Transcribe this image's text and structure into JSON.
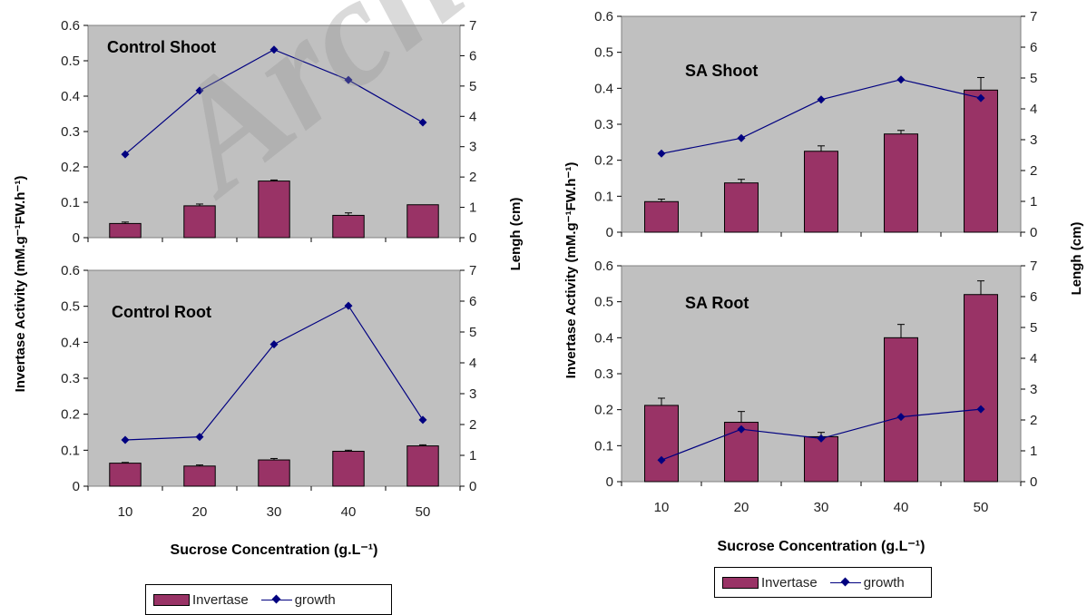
{
  "colors": {
    "invertase": "#993366",
    "growth": "#000080",
    "plot_bg": "#C0C0C0"
  },
  "watermark": "Archive",
  "left_figure": {
    "y_left_label": "Invertase Activity (mM.g⁻¹FW.h⁻¹)",
    "y_right_label": "Lengh (cm)",
    "x_label": "Sucrose Concentration (g.L⁻¹)",
    "legend": {
      "invertase": "Invertase",
      "growth": "growth"
    }
  },
  "right_figure": {
    "y_left_label": "Invertase Activity (mM.g⁻¹FW.h⁻¹)",
    "y_right_label": "Lengh (cm)",
    "x_label": "Sucrose Concentration (g.L⁻¹)",
    "legend": {
      "invertase": "Invertase",
      "growth": "growth"
    }
  },
  "chart_data": [
    {
      "type": "bar",
      "title": "Control Shoot",
      "categories": [
        "10",
        "20",
        "30",
        "40",
        "50"
      ],
      "series": [
        {
          "name": "Invertase",
          "axis": "left",
          "type": "bar",
          "values": [
            0.04,
            0.09,
            0.16,
            0.063,
            0.093
          ],
          "errors": [
            0.004,
            0.005,
            0.003,
            0.007,
            0.0
          ]
        },
        {
          "name": "growth",
          "axis": "right",
          "type": "line",
          "values": [
            2.75,
            4.85,
            6.2,
            5.2,
            3.8
          ]
        }
      ],
      "ylim": [
        0,
        0.6
      ],
      "yticks": [
        "0",
        "0.1",
        "0.2",
        "0.3",
        "0.4",
        "0.5",
        "0.6"
      ],
      "y2lim": [
        0,
        7
      ],
      "y2ticks": [
        "0",
        "1",
        "2",
        "3",
        "4",
        "5",
        "6",
        "7"
      ],
      "grid": false
    },
    {
      "type": "bar",
      "title": "Control Root",
      "categories": [
        "10",
        "20",
        "30",
        "40",
        "50"
      ],
      "series": [
        {
          "name": "Invertase",
          "axis": "left",
          "type": "bar",
          "values": [
            0.064,
            0.056,
            0.073,
            0.097,
            0.112
          ],
          "errors": [
            0.002,
            0.003,
            0.004,
            0.003,
            0.003
          ]
        },
        {
          "name": "growth",
          "axis": "right",
          "type": "line",
          "values": [
            1.5,
            1.6,
            4.6,
            5.85,
            2.15
          ]
        }
      ],
      "ylim": [
        0,
        0.6
      ],
      "yticks": [
        "0",
        "0.1",
        "0.2",
        "0.3",
        "0.4",
        "0.5",
        "0.6"
      ],
      "y2lim": [
        0,
        7
      ],
      "y2ticks": [
        "0",
        "1",
        "2",
        "3",
        "4",
        "5",
        "6",
        "7"
      ],
      "grid": false
    },
    {
      "type": "bar",
      "title": "SA Shoot",
      "categories": [
        "10",
        "20",
        "30",
        "40",
        "50"
      ],
      "series": [
        {
          "name": "Invertase",
          "axis": "left",
          "type": "bar",
          "values": [
            0.085,
            0.137,
            0.225,
            0.273,
            0.395
          ],
          "errors": [
            0.007,
            0.01,
            0.015,
            0.01,
            0.035
          ]
        },
        {
          "name": "growth",
          "axis": "right",
          "type": "line",
          "values": [
            2.55,
            3.05,
            4.3,
            4.95,
            4.35
          ]
        }
      ],
      "ylim": [
        0,
        0.6
      ],
      "yticks": [
        "0",
        "0.1",
        "0.2",
        "0.3",
        "0.4",
        "0.5",
        "0.6"
      ],
      "y2lim": [
        0,
        7
      ],
      "y2ticks": [
        "0",
        "1",
        "2",
        "3",
        "4",
        "5",
        "6",
        "7"
      ],
      "grid": false
    },
    {
      "type": "bar",
      "title": "SA Root",
      "categories": [
        "10",
        "20",
        "30",
        "40",
        "50"
      ],
      "series": [
        {
          "name": "Invertase",
          "axis": "left",
          "type": "bar",
          "values": [
            0.212,
            0.165,
            0.125,
            0.4,
            0.52
          ],
          "errors": [
            0.02,
            0.03,
            0.012,
            0.037,
            0.038
          ]
        },
        {
          "name": "growth",
          "axis": "right",
          "type": "line",
          "values": [
            0.7,
            1.7,
            1.4,
            2.1,
            2.35
          ]
        }
      ],
      "ylim": [
        0,
        0.6
      ],
      "yticks": [
        "0",
        "0.1",
        "0.2",
        "0.3",
        "0.4",
        "0.5",
        "0.6"
      ],
      "y2lim": [
        0,
        7
      ],
      "y2ticks": [
        "0",
        "1",
        "2",
        "3",
        "4",
        "5",
        "6",
        "7"
      ],
      "grid": false
    }
  ]
}
